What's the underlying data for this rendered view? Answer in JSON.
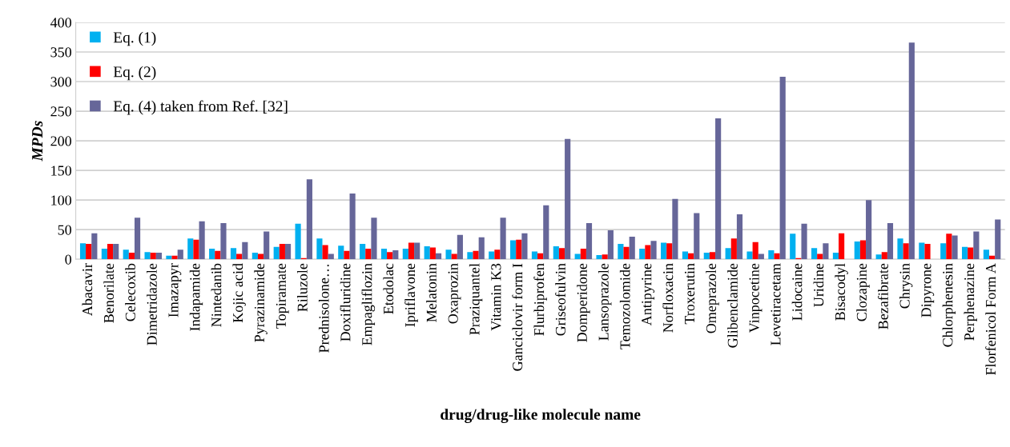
{
  "chart_data": {
    "type": "bar",
    "xlabel": "drug/drug-like molecule name",
    "ylabel": "MPDs",
    "categories": [
      "Abacavir",
      "Benorilate",
      "Celecoxib",
      "Dimetridazole",
      "Imazapyr",
      "Indapamide",
      "Nintedanib",
      "Kojic acid",
      "Pyrazinamide",
      "Topiramate",
      "Riluzole",
      "Prednisolone…",
      "Doxifluridine",
      "Empagliflozin",
      "Etodolac",
      "Ipriflavone",
      "Melatonin",
      "Oxaprozin",
      "Praziquantel",
      "Vitamin K3",
      "Ganciclovir form I",
      "Flurbiprofen",
      "Griseofulvin",
      "Domperidone",
      "Lansoprazole",
      "Temozolomide",
      "Antipyrine",
      "Norfloxacin",
      "Troxerutin",
      "Omeprazole",
      "Glibenclamide",
      "Vinpocetine",
      "Levetiracetam",
      "Lidocaine",
      "Uridine",
      "Bisacodyl",
      "Clozapine",
      "Bezafibrate",
      "Chrysin",
      "Dipyrone",
      "Chlorphenesin",
      "Perphenazine",
      "Florfenicol Form A"
    ],
    "series": [
      {
        "name": "Eq. (1)",
        "color": "#00b0f0",
        "values": [
          27,
          18,
          16,
          12,
          6,
          35,
          18,
          19,
          11,
          21,
          60,
          35,
          23,
          26,
          18,
          18,
          22,
          16,
          12,
          13,
          32,
          13,
          22,
          9,
          7,
          26,
          18,
          28,
          13,
          11,
          19,
          13,
          15,
          43,
          19,
          11,
          30,
          8,
          35,
          28,
          27,
          21,
          16
        ]
      },
      {
        "name": "Eq. (2)",
        "color": "#ff0000",
        "values": [
          26,
          26,
          11,
          11,
          6,
          33,
          14,
          9,
          9,
          26,
          2,
          24,
          14,
          18,
          12,
          28,
          20,
          9,
          14,
          16,
          33,
          10,
          19,
          18,
          8,
          21,
          24,
          27,
          10,
          12,
          35,
          29,
          10,
          2,
          9,
          44,
          32,
          12,
          27,
          26,
          43,
          20,
          6
        ]
      },
      {
        "name": "Eq. (4) taken from Ref. [32]",
        "color": "#666699",
        "values": [
          44,
          26,
          70,
          11,
          16,
          64,
          61,
          29,
          47,
          26,
          135,
          9,
          111,
          70,
          15,
          28,
          10,
          41,
          37,
          70,
          44,
          91,
          203,
          61,
          49,
          38,
          31,
          102,
          78,
          238,
          76,
          9,
          308,
          60,
          27,
          null,
          100,
          61,
          366,
          null,
          40,
          47,
          67
        ]
      }
    ],
    "ylim": [
      0,
      400
    ],
    "yticks": [
      0,
      50,
      100,
      150,
      200,
      250,
      300,
      350,
      400
    ],
    "grid": "y",
    "legend": "top left"
  }
}
